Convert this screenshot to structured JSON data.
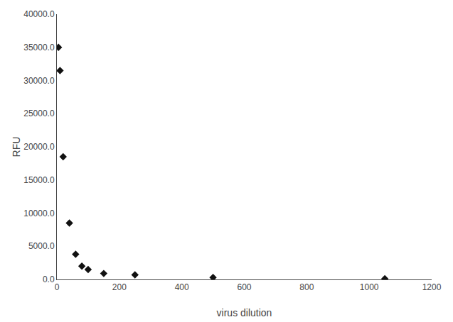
{
  "chart_data": {
    "type": "scatter",
    "x": [
      5,
      10,
      20,
      40,
      60,
      80,
      100,
      150,
      250,
      500,
      1050
    ],
    "values": [
      35000,
      31500,
      18500,
      8500,
      3800,
      2000,
      1500,
      900,
      700,
      300,
      100
    ],
    "xlabel": "virus dilution",
    "ylabel": "RFU",
    "xlim": [
      0,
      1200
    ],
    "ylim": [
      0,
      40000
    ],
    "xticks": [
      0,
      200,
      400,
      600,
      800,
      1000,
      1200
    ],
    "yticks": [
      {
        "value": 0,
        "label": "0.0"
      },
      {
        "value": 5000,
        "label": "5000.0"
      },
      {
        "value": 10000,
        "label": "10000.0"
      },
      {
        "value": 15000,
        "label": "15000.0"
      },
      {
        "value": 20000,
        "label": "20000.0"
      },
      {
        "value": 25000,
        "label": "25000.0"
      },
      {
        "value": 30000,
        "label": "30000.0"
      },
      {
        "value": 35000,
        "label": "35000.0"
      },
      {
        "value": 40000,
        "label": "40000.0"
      }
    ],
    "marker": "diamond",
    "color": "#111111",
    "grid": false
  }
}
